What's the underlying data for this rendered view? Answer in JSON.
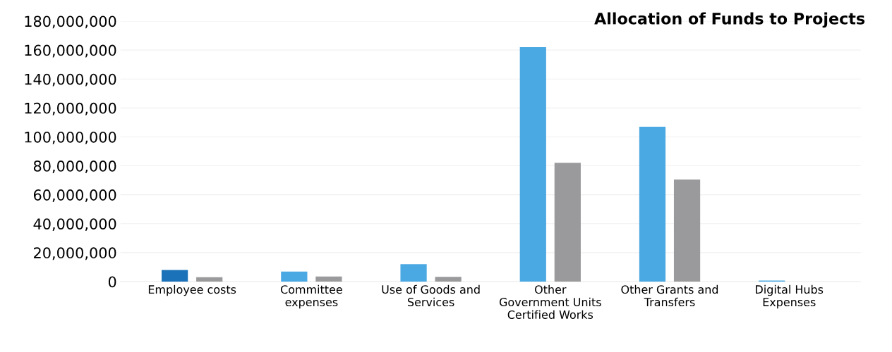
{
  "chart_data": {
    "type": "bar",
    "title": "Allocation of Funds to Projects",
    "categories": [
      "Employee costs",
      "Committee\nexpenses",
      "Use of Goods and\nServices",
      "Other\nGovernment Units\nCertified Works",
      "Other Grants and\nTransfers",
      "Digital Hubs\nExpenses"
    ],
    "series": [
      {
        "colors": [
          "#1b72b8",
          "#4aa8e2",
          "#4aa8e2",
          "#4aa8e2",
          "#4aa8e2",
          "#4aa8e2"
        ],
        "values": [
          8000000,
          6900000,
          12100000,
          162000000,
          107000000,
          700000
        ]
      },
      {
        "color": "#9a9a9c",
        "values": [
          3100000,
          3500000,
          3300000,
          82100000,
          70600000,
          0
        ]
      }
    ],
    "ylim": [
      0,
      180000000
    ],
    "yticks": [
      {
        "value": 0,
        "label": "0"
      },
      {
        "value": 20000000,
        "label": "20,000,000"
      },
      {
        "value": 40000000,
        "label": "40,000,000"
      },
      {
        "value": 60000000,
        "label": "60,000,000"
      },
      {
        "value": 80000000,
        "label": "80,000,000"
      },
      {
        "value": 100000000,
        "label": "100,000,000"
      },
      {
        "value": 120000000,
        "label": "120,000,000"
      },
      {
        "value": 140000000,
        "label": "140,000,000"
      },
      {
        "value": 160000000,
        "label": "160,000,000"
      },
      {
        "value": 180000000,
        "label": "180,000,000"
      }
    ],
    "grid": "y",
    "legend": false
  }
}
